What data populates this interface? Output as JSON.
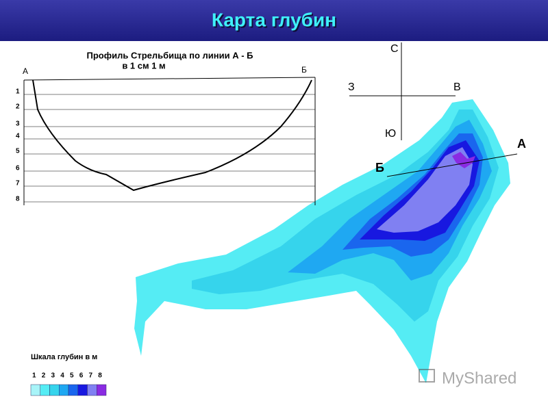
{
  "header": {
    "title": "Карта глубин"
  },
  "profile": {
    "title": "Профиль Стрельбища по линии А - Б",
    "subtitle": "в 1 см 1 м",
    "left_label": "А",
    "right_label": "Б",
    "depth_labels": [
      "1",
      "2",
      "3",
      "4",
      "5",
      "6",
      "7",
      "8"
    ]
  },
  "compass": {
    "north": "С",
    "west": "З",
    "east": "В",
    "south": "Ю"
  },
  "map": {
    "label_a": "А",
    "label_b": "Б"
  },
  "scale": {
    "title": "Шкала глубин в м",
    "labels": [
      "1",
      "2",
      "3",
      "4",
      "5",
      "6",
      "7",
      "8"
    ]
  },
  "watermark": "MyShared"
}
